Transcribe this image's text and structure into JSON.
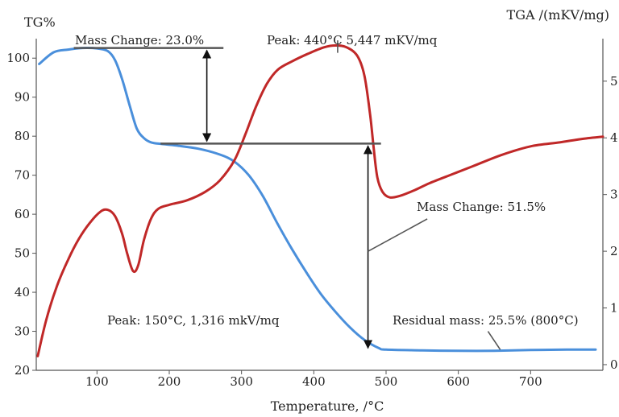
{
  "chart_data": {
    "type": "line",
    "y_left_title": "TG%",
    "y_right_title": "TGA /(mKV/mg)",
    "xlabel": "Temperature, /°C",
    "xlim": [
      16,
      800
    ],
    "ylim_left": [
      20,
      105
    ],
    "ylim_right": [
      -0.1,
      5.75
    ],
    "x_ticks": [
      "100",
      "200",
      "300",
      "400",
      "500",
      "600",
      "700"
    ],
    "y_left_ticks": [
      "20",
      "30",
      "40",
      "50",
      "60",
      "70",
      "80",
      "90",
      "100"
    ],
    "y_right_ticks": [
      "0",
      "1",
      "2",
      "3",
      "4",
      "5"
    ],
    "series": [
      {
        "axis": "left",
        "color": "#4a8fdb",
        "x": [
          20,
          40,
          60,
          80,
          100,
          115,
          125,
          135,
          145,
          155,
          165,
          175,
          190,
          210,
          240,
          270,
          290,
          310,
          330,
          350,
          370,
          390,
          410,
          430,
          450,
          470,
          490,
          500,
          550,
          600,
          650,
          700,
          750,
          790
        ],
        "y": [
          98.5,
          101.5,
          102.2,
          102.6,
          102.5,
          101.8,
          99.5,
          94.5,
          88,
          82,
          79.5,
          78.4,
          78,
          77.6,
          76.8,
          75.3,
          73.5,
          70,
          64.5,
          57.5,
          51,
          45,
          39.5,
          35,
          31,
          27.8,
          25.7,
          25.3,
          25.1,
          25,
          25,
          25.2,
          25.3,
          25.3
        ]
      },
      {
        "axis": "right",
        "color": "#c02828",
        "x": [
          18,
          30,
          45,
          60,
          75,
          90,
          105,
          115,
          125,
          135,
          142,
          150,
          157,
          165,
          175,
          185,
          200,
          225,
          250,
          270,
          290,
          305,
          320,
          335,
          350,
          370,
          395,
          415,
          430,
          445,
          460,
          470,
          478,
          483,
          488,
          495,
          505,
          520,
          540,
          560,
          590,
          620,
          660,
          700,
          740,
          770,
          800
        ],
        "y": [
          0.15,
          0.8,
          1.4,
          1.85,
          2.22,
          2.5,
          2.7,
          2.73,
          2.62,
          2.3,
          1.95,
          1.65,
          1.75,
          2.2,
          2.58,
          2.75,
          2.82,
          2.9,
          3.05,
          3.25,
          3.6,
          4.05,
          4.55,
          4.95,
          5.2,
          5.35,
          5.5,
          5.6,
          5.63,
          5.6,
          5.45,
          5.1,
          4.4,
          3.8,
          3.3,
          3.05,
          2.95,
          2.98,
          3.08,
          3.2,
          3.35,
          3.5,
          3.7,
          3.85,
          3.92,
          3.98,
          4.02
        ]
      }
    ],
    "annotations": [
      "Mass Change: 23.0%",
      "Peak: 440°C 5,447 mKV/mq",
      "Mass Change: 51.5%",
      "Peak: 150°C, 1,316 mkV/mq",
      "Residual mass: 25.5% (800°C)"
    ]
  }
}
